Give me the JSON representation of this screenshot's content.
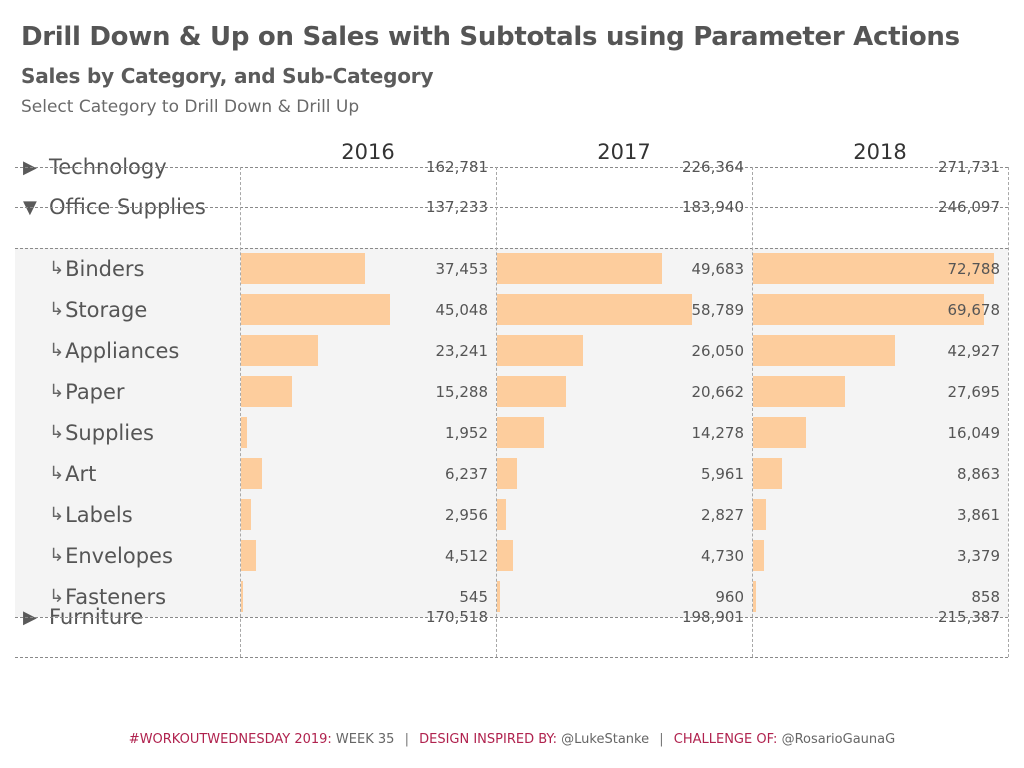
{
  "header": {
    "title": "Drill Down & Up on Sales with Subtotals using Parameter Actions",
    "subtitle": "Sales by Category, and Sub-Category",
    "description": "Select Category to Drill Down & Drill Up"
  },
  "colors": {
    "bar": "#fdcd9d",
    "category_bg": "#e6e6e6",
    "sub_bg": "#f4f4f4",
    "footer_accent": "#b0224e"
  },
  "icons": {
    "collapsed": "play-right-triangle",
    "expanded": "down-triangle",
    "child": "return-arrow"
  },
  "glyphs": {
    "collapsed": "▶",
    "expanded": "▼",
    "child": "↳"
  },
  "footer": {
    "part1_label": "#WORKOUTWEDNESDAY 2019:",
    "part1_value": " WEEK 35",
    "sep": "|",
    "part2_label": "DESIGN INSPIRED BY:",
    "part2_value": " @LukeStanke",
    "part3_label": "CHALLENGE OF:",
    "part3_value": " @RosarioGaunaG"
  },
  "chart_data": {
    "type": "table",
    "title": "Drill Down & Up on Sales with Subtotals using Parameter Actions",
    "subtitle": "Sales by Category, and Sub-Category",
    "columns": [
      "2016",
      "2017",
      "2018"
    ],
    "bar_axis_max": 76000,
    "rows": [
      {
        "kind": "category",
        "label": "Technology",
        "expanded": false,
        "values": [
          162781,
          226364,
          271731
        ],
        "display": [
          "162,781",
          "226,364",
          "271,731"
        ]
      },
      {
        "kind": "category",
        "label": "Office Supplies",
        "expanded": true,
        "values": [
          137233,
          183940,
          246097
        ],
        "display": [
          "137,233",
          "183,940",
          "246,097"
        ]
      },
      {
        "kind": "sub",
        "label": "Binders",
        "values": [
          37453,
          49683,
          72788
        ],
        "display": [
          "37,453",
          "49,683",
          "72,788"
        ]
      },
      {
        "kind": "sub",
        "label": "Storage",
        "values": [
          45048,
          58789,
          69678
        ],
        "display": [
          "45,048",
          "58,789",
          "69,678"
        ]
      },
      {
        "kind": "sub",
        "label": "Appliances",
        "values": [
          23241,
          26050,
          42927
        ],
        "display": [
          "23,241",
          "26,050",
          "42,927"
        ]
      },
      {
        "kind": "sub",
        "label": "Paper",
        "values": [
          15288,
          20662,
          27695
        ],
        "display": [
          "15,288",
          "20,662",
          "27,695"
        ]
      },
      {
        "kind": "sub",
        "label": "Supplies",
        "values": [
          1952,
          14278,
          16049
        ],
        "display": [
          "1,952",
          "14,278",
          "16,049"
        ]
      },
      {
        "kind": "sub",
        "label": "Art",
        "values": [
          6237,
          5961,
          8863
        ],
        "display": [
          "6,237",
          "5,961",
          "8,863"
        ]
      },
      {
        "kind": "sub",
        "label": "Labels",
        "values": [
          2956,
          2827,
          3861
        ],
        "display": [
          "2,956",
          "2,827",
          "3,861"
        ]
      },
      {
        "kind": "sub",
        "label": "Envelopes",
        "values": [
          4512,
          4730,
          3379
        ],
        "display": [
          "4,512",
          "4,730",
          "3,379"
        ]
      },
      {
        "kind": "sub",
        "label": "Fasteners",
        "values": [
          545,
          960,
          858
        ],
        "display": [
          "545",
          "960",
          "858"
        ]
      },
      {
        "kind": "category",
        "label": "Furniture",
        "expanded": false,
        "values": [
          170518,
          198901,
          215387
        ],
        "display": [
          "170,518",
          "198,901",
          "215,387"
        ]
      }
    ]
  }
}
